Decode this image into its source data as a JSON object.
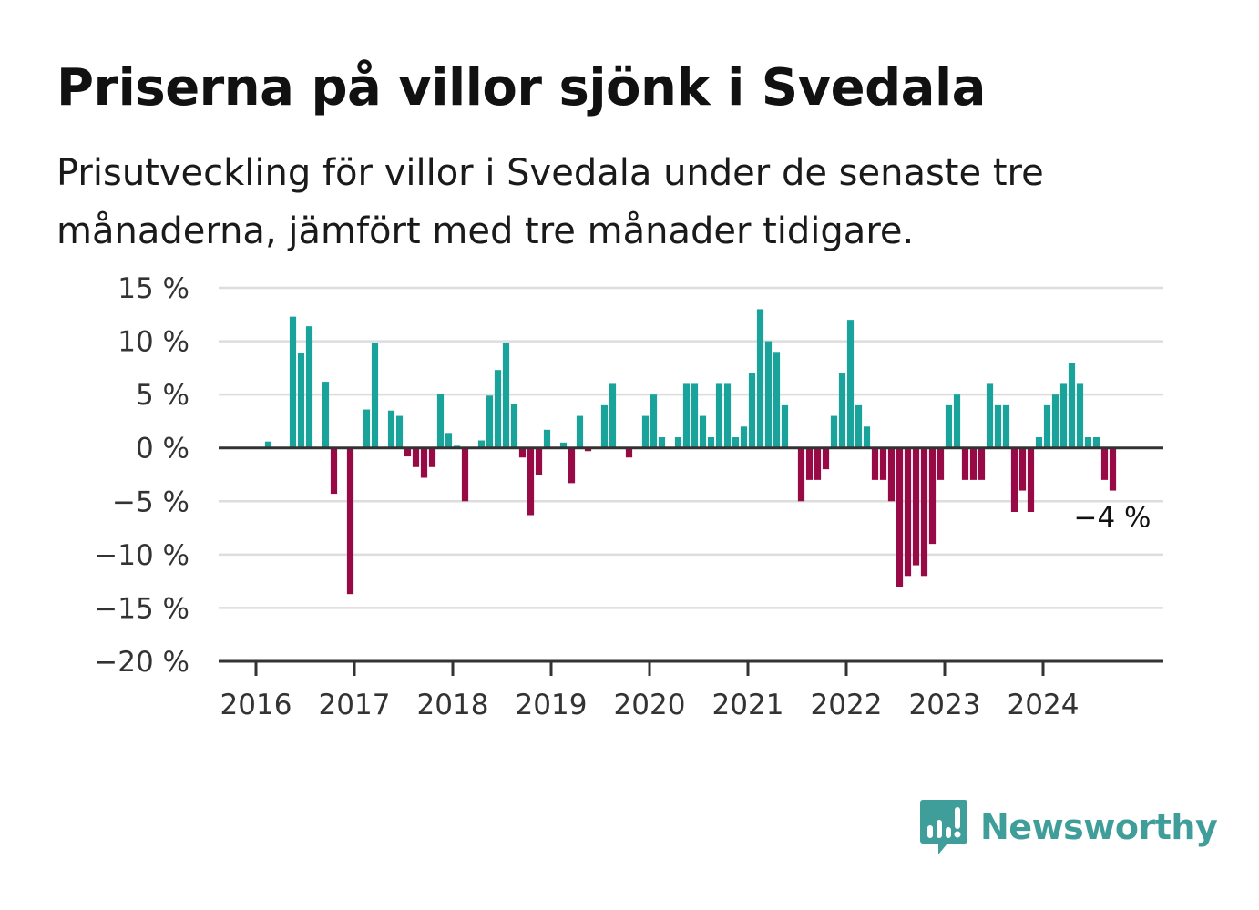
{
  "title": "Priserna på villor sjönk i Svedala",
  "subtitle": "Prisutveckling för villor i Svedala under de senaste tre månaderna, jämfört med tre månader tidigare.",
  "brand": "Newsworthy",
  "colors": {
    "positive": "#1aa39a",
    "negative": "#970a45",
    "grid": "#dddddd",
    "axis": "#333333"
  },
  "chart_data": {
    "type": "bar",
    "title": "Priserna på villor sjönk i Svedala",
    "xlabel": "",
    "ylabel": "",
    "ylim": [
      -20,
      15
    ],
    "y_ticks": [
      15,
      10,
      5,
      0,
      -5,
      -10,
      -15,
      -20
    ],
    "y_tick_labels": [
      "15 %",
      "10 %",
      "5 %",
      "0 %",
      "−5 %",
      "−10 %",
      "−15 %",
      "−20 %"
    ],
    "x_ticks": [
      "2016",
      "2017",
      "2018",
      "2019",
      "2020",
      "2021",
      "2022",
      "2023",
      "2024"
    ],
    "start": "2015-11",
    "grid": true,
    "values": [
      0,
      0,
      0,
      0.6,
      0,
      0,
      12.3,
      8.9,
      11.4,
      0,
      6.2,
      -4.3,
      0,
      -13.7,
      0,
      3.6,
      9.8,
      0,
      3.5,
      3,
      -0.8,
      -1.8,
      -2.8,
      -1.8,
      5.1,
      1.4,
      0.2,
      -5,
      0,
      0.7,
      4.9,
      7.3,
      9.8,
      4.1,
      -0.9,
      -6.3,
      -2.5,
      1.7,
      0,
      0.5,
      -3.3,
      3,
      -0.3,
      0,
      4,
      6,
      0,
      -0.9,
      0,
      3,
      5,
      1,
      0,
      1,
      6,
      6,
      3,
      1,
      6,
      6,
      1,
      2,
      7,
      13,
      10,
      9,
      4,
      0,
      -5,
      -3,
      -3,
      -2,
      3,
      7,
      12,
      4,
      2,
      -3,
      -3,
      -5,
      -13,
      -12,
      -11,
      -12,
      -9,
      -3,
      4,
      5,
      -3,
      -3,
      -3,
      6,
      4,
      4,
      -6,
      -4,
      -6,
      1,
      4,
      5,
      6,
      8,
      6,
      1,
      1,
      -3,
      -4
    ],
    "annotations": [
      {
        "text": "−4 %",
        "target": "last"
      }
    ]
  }
}
